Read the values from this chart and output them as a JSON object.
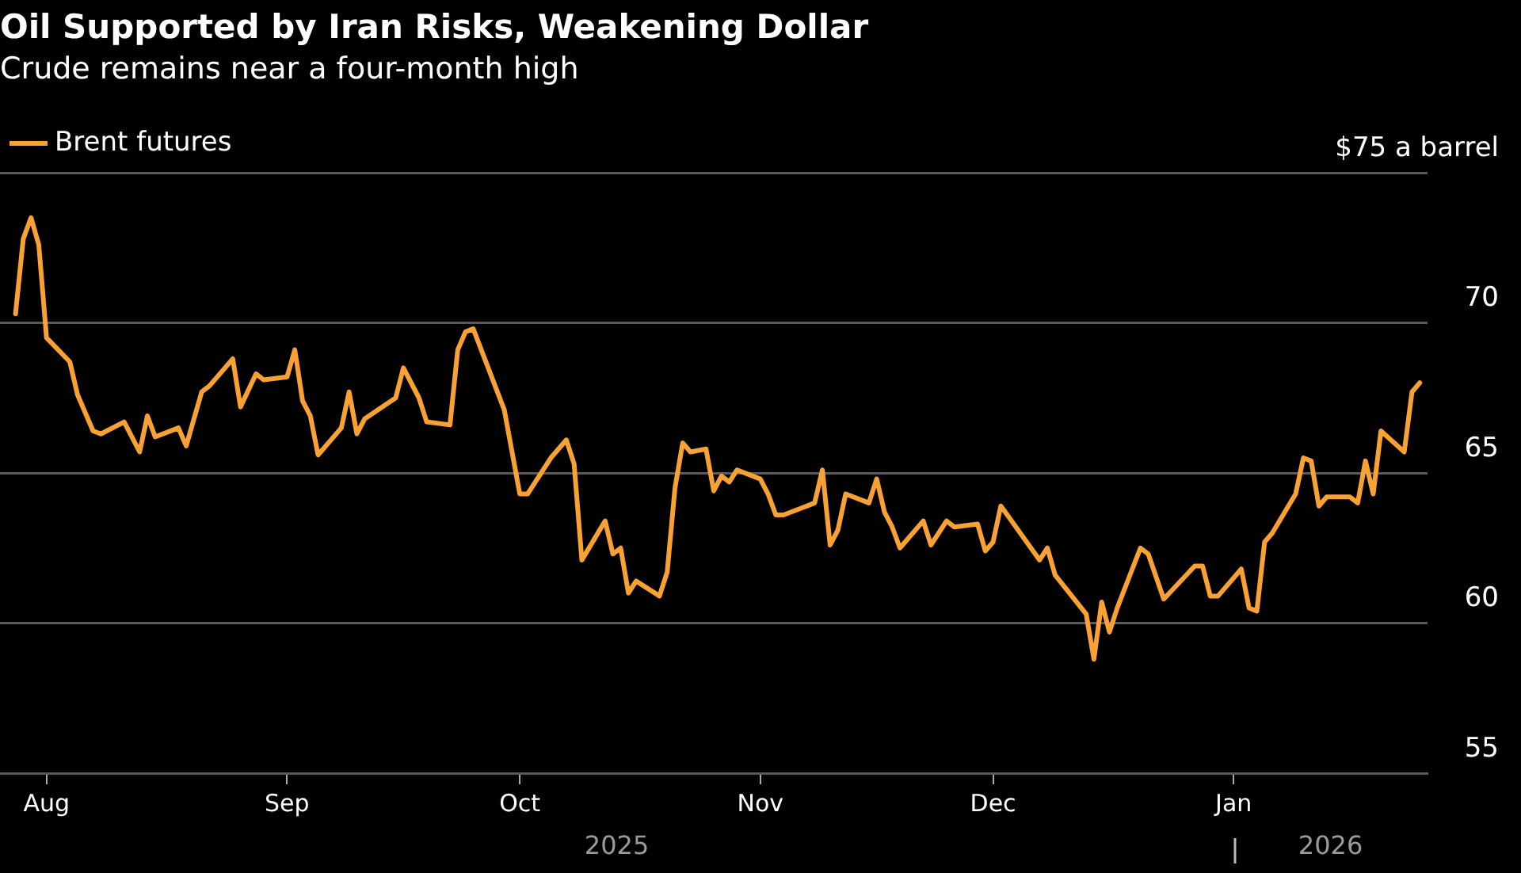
{
  "chart_data": {
    "type": "line",
    "title": "Oil Supported by Iran Risks, Weakening Dollar",
    "subtitle": "Crude remains near a four-month high",
    "x": [
      "2025-07-28",
      "2025-07-29",
      "2025-07-30",
      "2025-07-31",
      "2025-08-01",
      "2025-08-04",
      "2025-08-05",
      "2025-08-07",
      "2025-08-08",
      "2025-08-11",
      "2025-08-13",
      "2025-08-14",
      "2025-08-15",
      "2025-08-18",
      "2025-08-19",
      "2025-08-21",
      "2025-08-22",
      "2025-08-25",
      "2025-08-26",
      "2025-08-28",
      "2025-08-29",
      "2025-09-01",
      "2025-09-02",
      "2025-09-03",
      "2025-09-04",
      "2025-09-05",
      "2025-09-08",
      "2025-09-09",
      "2025-09-10",
      "2025-09-11",
      "2025-09-15",
      "2025-09-16",
      "2025-09-18",
      "2025-09-19",
      "2025-09-22",
      "2025-09-23",
      "2025-09-24",
      "2025-09-25",
      "2025-09-29",
      "2025-10-01",
      "2025-10-02",
      "2025-10-05",
      "2025-10-07",
      "2025-10-08",
      "2025-10-09",
      "2025-10-12",
      "2025-10-13",
      "2025-10-14",
      "2025-10-15",
      "2025-10-16",
      "2025-10-19",
      "2025-10-20",
      "2025-10-21",
      "2025-10-22",
      "2025-10-23",
      "2025-10-25",
      "2025-10-26",
      "2025-10-27",
      "2025-10-28",
      "2025-10-29",
      "2025-11-01",
      "2025-11-02",
      "2025-11-03",
      "2025-11-04",
      "2025-11-06",
      "2025-11-08",
      "2025-11-09",
      "2025-11-10",
      "2025-11-11",
      "2025-11-12",
      "2025-11-15",
      "2025-11-16",
      "2025-11-17",
      "2025-11-18",
      "2025-11-19",
      "2025-11-22",
      "2025-11-23",
      "2025-11-25",
      "2025-11-26",
      "2025-11-29",
      "2025-11-30",
      "2025-12-01",
      "2025-12-02",
      "2025-12-07",
      "2025-12-08",
      "2025-12-09",
      "2025-12-13",
      "2025-12-14",
      "2025-12-15",
      "2025-12-16",
      "2025-12-17",
      "2025-12-20",
      "2025-12-21",
      "2025-12-23",
      "2025-12-27",
      "2025-12-28",
      "2025-12-29",
      "2025-12-30",
      "2026-01-02",
      "2026-01-03",
      "2026-01-04",
      "2026-01-05",
      "2026-01-06",
      "2026-01-09",
      "2026-01-10",
      "2026-01-11",
      "2026-01-12",
      "2026-01-13",
      "2026-01-16",
      "2026-01-17",
      "2026-01-18",
      "2026-01-19",
      "2026-01-20",
      "2026-01-23",
      "2026-01-24",
      "2026-01-25"
    ],
    "series": [
      {
        "name": "Brent futures",
        "color": "#f9a132",
        "values": [
          70.3,
          72.8,
          73.5,
          72.6,
          69.5,
          68.7,
          67.6,
          66.4,
          66.3,
          66.7,
          65.7,
          66.9,
          66.2,
          66.5,
          65.9,
          67.7,
          67.9,
          68.8,
          67.2,
          68.3,
          68.1,
          68.2,
          69.1,
          67.4,
          66.9,
          65.6,
          66.5,
          67.7,
          66.3,
          66.8,
          67.5,
          68.5,
          67.5,
          66.7,
          66.6,
          69.1,
          69.7,
          69.8,
          67.1,
          64.3,
          64.3,
          65.5,
          66.1,
          65.3,
          62.1,
          63.4,
          62.3,
          62.5,
          61.0,
          61.4,
          60.9,
          61.7,
          64.5,
          66.0,
          65.7,
          65.8,
          64.4,
          64.9,
          64.7,
          65.1,
          64.8,
          64.3,
          63.6,
          63.6,
          63.8,
          64.0,
          65.1,
          62.6,
          63.1,
          64.3,
          64.0,
          64.8,
          63.7,
          63.2,
          62.5,
          63.4,
          62.6,
          63.4,
          63.2,
          63.3,
          62.4,
          62.7,
          63.9,
          62.1,
          62.5,
          61.6,
          60.3,
          58.8,
          60.7,
          59.7,
          60.5,
          62.5,
          62.3,
          60.8,
          61.9,
          61.9,
          60.9,
          60.9,
          61.8,
          60.5,
          60.4,
          62.7,
          63.0,
          64.3,
          65.5,
          65.4,
          63.9,
          64.2,
          64.2,
          64.0,
          65.4,
          64.3,
          66.4,
          65.7,
          67.7,
          68.0
        ]
      }
    ],
    "xlim": [
      "2025-07-26",
      "2026-01-26"
    ],
    "xticks": [
      {
        "value": "2025-08-01",
        "label": "Aug"
      },
      {
        "value": "2025-09-01",
        "label": "Sep"
      },
      {
        "value": "2025-10-01",
        "label": "Oct"
      },
      {
        "value": "2025-11-01",
        "label": "Nov"
      },
      {
        "value": "2025-12-01",
        "label": "Dec"
      },
      {
        "value": "2026-01-01",
        "label": "Jan"
      }
    ],
    "ylim": [
      55,
      75
    ],
    "yticks": [
      55,
      60,
      65,
      70,
      {
        "value": 75,
        "label": "$75 a barrel"
      }
    ],
    "annotations": [
      "2025",
      "2026"
    ],
    "grid": "y",
    "legend": "top left",
    "marker": "none",
    "line_style": "solid"
  }
}
